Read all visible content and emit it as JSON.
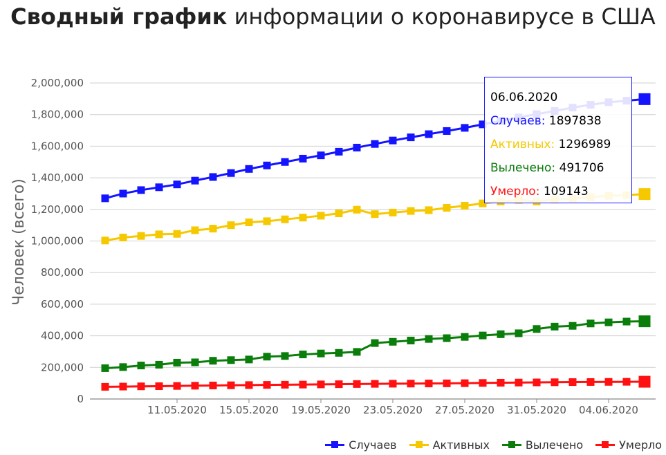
{
  "title": {
    "bold": "Сводный график",
    "rest": " информации о коронавирусе в США"
  },
  "chart_data": {
    "type": "line",
    "ylabel": "Человек (всего)",
    "xlabel": "",
    "ylim": [
      0,
      2000000
    ],
    "y_ticks": [
      "0",
      "200,000",
      "400,000",
      "600,000",
      "800,000",
      "1,000,000",
      "1,200,000",
      "1,400,000",
      "1,600,000",
      "1,800,000",
      "2,000,000"
    ],
    "x": [
      "07.05.2020",
      "08.05.2020",
      "09.05.2020",
      "10.05.2020",
      "11.05.2020",
      "12.05.2020",
      "13.05.2020",
      "14.05.2020",
      "15.05.2020",
      "16.05.2020",
      "17.05.2020",
      "18.05.2020",
      "19.05.2020",
      "20.05.2020",
      "21.05.2020",
      "22.05.2020",
      "23.05.2020",
      "24.05.2020",
      "25.05.2020",
      "26.05.2020",
      "27.05.2020",
      "28.05.2020",
      "29.05.2020",
      "30.05.2020",
      "31.05.2020",
      "01.06.2020",
      "02.06.2020",
      "03.06.2020",
      "04.06.2020",
      "05.06.2020",
      "06.06.2020"
    ],
    "x_tick_labels": [
      "11.05.2020",
      "15.05.2020",
      "19.05.2020",
      "23.05.2020",
      "27.05.2020",
      "31.05.2020",
      "04.06.2020"
    ],
    "series": [
      {
        "name": "Случаев",
        "color": "#1414ff",
        "values": [
          1270000,
          1300000,
          1322000,
          1340000,
          1358000,
          1382000,
          1405000,
          1430000,
          1456000,
          1478000,
          1500000,
          1521000,
          1542000,
          1565000,
          1591000,
          1614000,
          1636000,
          1656000,
          1676000,
          1696000,
          1716000,
          1738000,
          1760000,
          1782000,
          1803000,
          1823000,
          1844000,
          1862000,
          1878000,
          1888000,
          1897838
        ]
      },
      {
        "name": "Активных",
        "color": "#f5c800",
        "values": [
          1003000,
          1022000,
          1032000,
          1042000,
          1045000,
          1068000,
          1078000,
          1100000,
          1118000,
          1125000,
          1137000,
          1148000,
          1160000,
          1175000,
          1198000,
          1170000,
          1180000,
          1190000,
          1195000,
          1210000,
          1223000,
          1238000,
          1250000,
          1260000,
          1250000,
          1262000,
          1268000,
          1278000,
          1286000,
          1290000,
          1296989
        ]
      },
      {
        "name": "Вылечено",
        "color": "#0a7d0a",
        "values": [
          195000,
          202000,
          212000,
          217000,
          230000,
          232000,
          242000,
          246000,
          250000,
          268000,
          272000,
          282000,
          288000,
          292000,
          298000,
          354000,
          362000,
          370000,
          380000,
          385000,
          393000,
          402000,
          410000,
          416000,
          443000,
          458000,
          463000,
          478000,
          485000,
          490000,
          491706
        ]
      },
      {
        "name": "Умерло",
        "color": "#ff1111",
        "values": [
          77000,
          78500,
          80000,
          81000,
          82500,
          84000,
          85500,
          86800,
          88000,
          89200,
          90300,
          91200,
          92300,
          93500,
          94700,
          95800,
          96700,
          97500,
          98200,
          99000,
          100000,
          101500,
          102800,
          104000,
          105000,
          106000,
          107000,
          107500,
          108300,
          108900,
          109143
        ]
      }
    ]
  },
  "tooltip": {
    "date": "06.06.2020",
    "rows": [
      {
        "label": "Случаев:",
        "value": "1897838",
        "color": "#1414ff"
      },
      {
        "label": "Активных:",
        "value": "1296989",
        "color": "#f5c800"
      },
      {
        "label": "Вылечено:",
        "value": "491706",
        "color": "#0a7d0a"
      },
      {
        "label": "Умерло:",
        "value": "109143",
        "color": "#ff1111"
      }
    ]
  }
}
